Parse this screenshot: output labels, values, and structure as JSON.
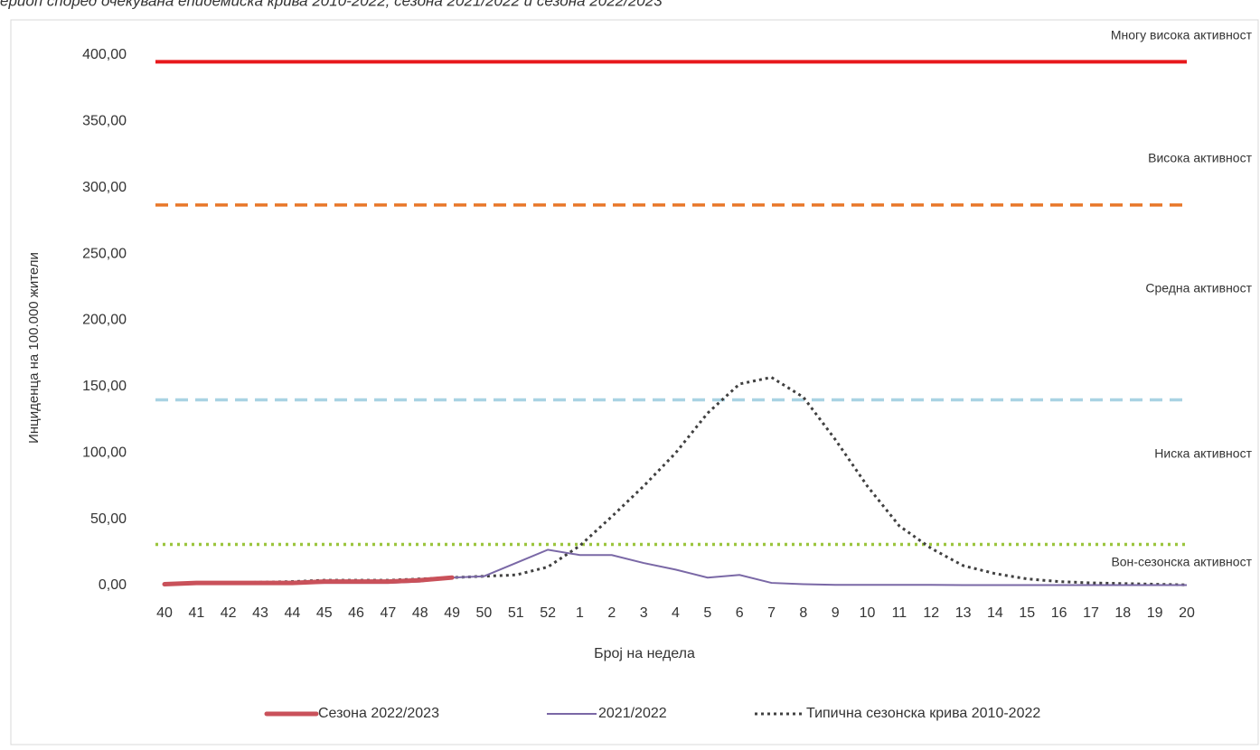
{
  "chart_data": {
    "type": "line",
    "title": "ериоп според очекувана епидемиска крива 2010-2022, сезона 2021/2022 и сезона 2022/2023",
    "xlabel": "Број на недела",
    "ylabel": "Инциденца на 100.000 жители",
    "categories": [
      "40",
      "41",
      "42",
      "43",
      "44",
      "45",
      "46",
      "47",
      "48",
      "49",
      "50",
      "51",
      "52",
      "1",
      "2",
      "3",
      "4",
      "5",
      "6",
      "7",
      "8",
      "9",
      "10",
      "11",
      "12",
      "13",
      "14",
      "15",
      "16",
      "17",
      "18",
      "19",
      "20"
    ],
    "ylim": [
      0,
      400
    ],
    "yticks": [
      {
        "value": 0,
        "label": "0,00"
      },
      {
        "value": 50,
        "label": "50,00"
      },
      {
        "value": 100,
        "label": "100,00"
      },
      {
        "value": 150,
        "label": "150,00"
      },
      {
        "value": 200,
        "label": "200,00"
      },
      {
        "value": 250,
        "label": "250,00"
      },
      {
        "value": 300,
        "label": "300,00"
      },
      {
        "value": 350,
        "label": "350,00"
      },
      {
        "value": 400,
        "label": "400,00"
      }
    ],
    "thresholds": [
      {
        "value": 395,
        "color": "#e8191c",
        "style": "solid"
      },
      {
        "value": 287,
        "color": "#e8782a",
        "style": "dashed"
      },
      {
        "value": 140,
        "color": "#a9d3e3",
        "style": "dashed"
      },
      {
        "value": 31,
        "color": "#9bc53d",
        "style": "dotted"
      }
    ],
    "annotations": [
      "Многу висока активност",
      "Висока активност",
      "Средна активност",
      "Ниска активност",
      "Вон-сезонска активност"
    ],
    "series": [
      {
        "name": "Сезона 2022/2023",
        "color": "#c9515a",
        "style": "thick",
        "values": [
          1,
          2,
          2,
          2,
          2,
          3,
          3,
          3,
          4,
          6,
          null,
          null,
          null,
          null,
          null,
          null,
          null,
          null,
          null,
          null,
          null,
          null,
          null,
          null,
          null,
          null,
          null,
          null,
          null,
          null,
          null,
          null,
          null
        ]
      },
      {
        "name": "2021/2022",
        "color": "#7a68a6",
        "style": "solid",
        "values": [
          1,
          1,
          1,
          1,
          2,
          2,
          2,
          2,
          3,
          6,
          7,
          17,
          27,
          23,
          23,
          17,
          12,
          6,
          8,
          2,
          1,
          0.5,
          0.5,
          0.5,
          0.5,
          0.3,
          0.3,
          0.3,
          0.3,
          0.3,
          0.3,
          0.3,
          0.3
        ]
      },
      {
        "name": "Типична сезонска крива 2010-2022",
        "color": "#404040",
        "style": "dotted",
        "values": [
          1,
          1.5,
          2,
          2.5,
          3,
          4,
          4,
          4,
          5,
          6,
          7,
          8,
          14,
          30,
          52,
          75,
          100,
          130,
          152,
          157,
          142,
          110,
          75,
          45,
          28,
          15,
          9,
          5,
          3,
          2,
          1.5,
          1,
          0.5
        ]
      }
    ]
  }
}
